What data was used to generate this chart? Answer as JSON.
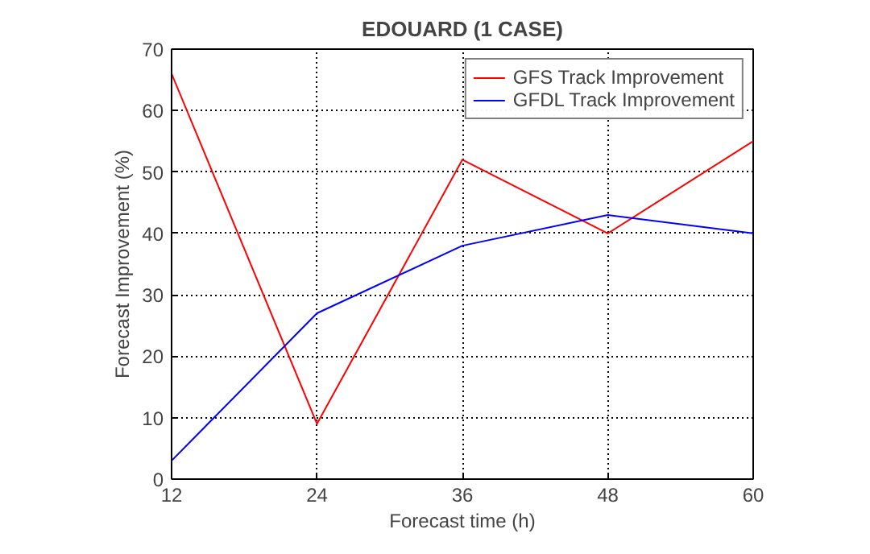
{
  "chart_data": {
    "type": "line",
    "title": "EDOUARD (1 CASE)",
    "xlabel": "Forecast time (h)",
    "ylabel": "Forecast Improvement (%)",
    "x": [
      12,
      24,
      36,
      48,
      60
    ],
    "series": [
      {
        "name": "GFS Track Improvement",
        "color": "#ff0000",
        "values": [
          66,
          9,
          52,
          40,
          55
        ]
      },
      {
        "name": "GFDL Track Improvement",
        "color": "#0000ff",
        "values": [
          3,
          27,
          38,
          43,
          40
        ]
      }
    ],
    "xlim": [
      12,
      60
    ],
    "xticks": [
      12,
      24,
      36,
      48,
      60
    ],
    "ylim": [
      0,
      70
    ],
    "yticks": [
      0,
      10,
      20,
      30,
      40,
      50,
      60,
      70
    ],
    "grid": true,
    "legend": "top right",
    "line_style": "solid"
  }
}
